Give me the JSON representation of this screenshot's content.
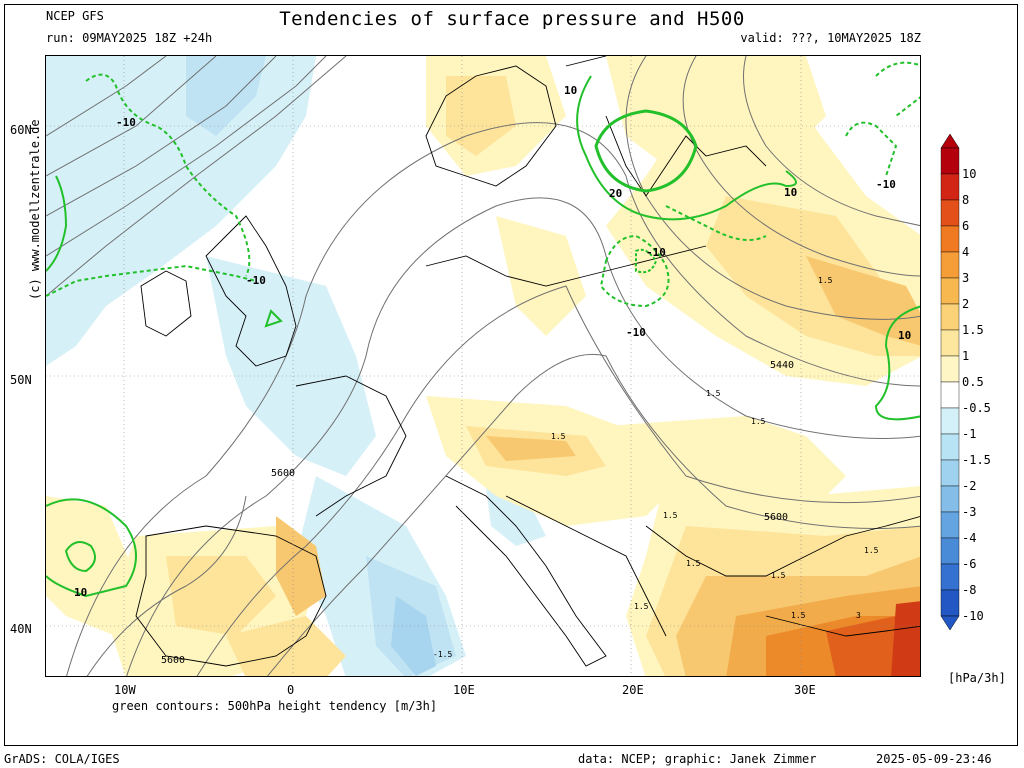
{
  "header": {
    "model": "NCEP GFS",
    "run": "run: 09MAY2025 18Z +24h",
    "title": "Tendencies of surface pressure and H500",
    "valid": "valid: ???, 10MAY2025 18Z"
  },
  "map": {
    "lat_labels": [
      "60N",
      "50N",
      "40N"
    ],
    "lon_labels": [
      "10W",
      "0",
      "10E",
      "20E",
      "30E"
    ],
    "contour_labels": {
      "green": [
        "-10",
        "10",
        "-10",
        "20",
        "10",
        "-10",
        "-10",
        "-10",
        "10",
        "10"
      ],
      "gray": [
        "5600",
        "5440",
        "5600",
        "5600"
      ],
      "black": [
        "1.5",
        "1.5",
        "1.5",
        "1.5",
        "1.5",
        "1.5",
        "1.5",
        "1.5",
        "1.5",
        "1.5",
        "3",
        "-1.5"
      ]
    },
    "colors": {
      "pos_1": "#fff5be",
      "pos_2": "#fde49a",
      "pos_3": "#f7c870",
      "pos_4": "#f2ab4a",
      "pos_5": "#ec8a2a",
      "pos_6": "#e0601c",
      "pos_7": "#d03a14",
      "pos_8": "#b01a0e",
      "neg_1": "#d6f0f8",
      "neg_2": "#bfe3f3",
      "neg_3": "#a7d4ee",
      "neg_4": "#8cc1e8",
      "green_contour": "#22c02a",
      "gray_contour": "#707070"
    }
  },
  "colorbar": {
    "labels": [
      "10",
      "8",
      "6",
      "4",
      "3",
      "2",
      "1.5",
      "1",
      "0.5",
      "-0.5",
      "-1",
      "-1.5",
      "-2",
      "-3",
      "-4",
      "-6",
      "-8",
      "-10"
    ],
    "colors": [
      "#b3000c",
      "#d22515",
      "#e45019",
      "#ef7a22",
      "#f59d36",
      "#f8b850",
      "#fbd277",
      "#fde79f",
      "#fff6c6",
      "#ffffff",
      "#d4f0f9",
      "#b7e3f4",
      "#9fd2ee",
      "#83bde8",
      "#64a4e0",
      "#4a8bd8",
      "#3471d0",
      "#2358c4"
    ],
    "unit": "[hPa/3h]"
  },
  "footer": {
    "note": "green contours: 500hPa height tendency [m/3h]",
    "grads": "GrADS: COLA/IGES",
    "credit": "data: NCEP; graphic: Janek Zimmer",
    "timestamp": "2025-05-09-23:46",
    "side": "(c) www.modellzentrale.de"
  }
}
